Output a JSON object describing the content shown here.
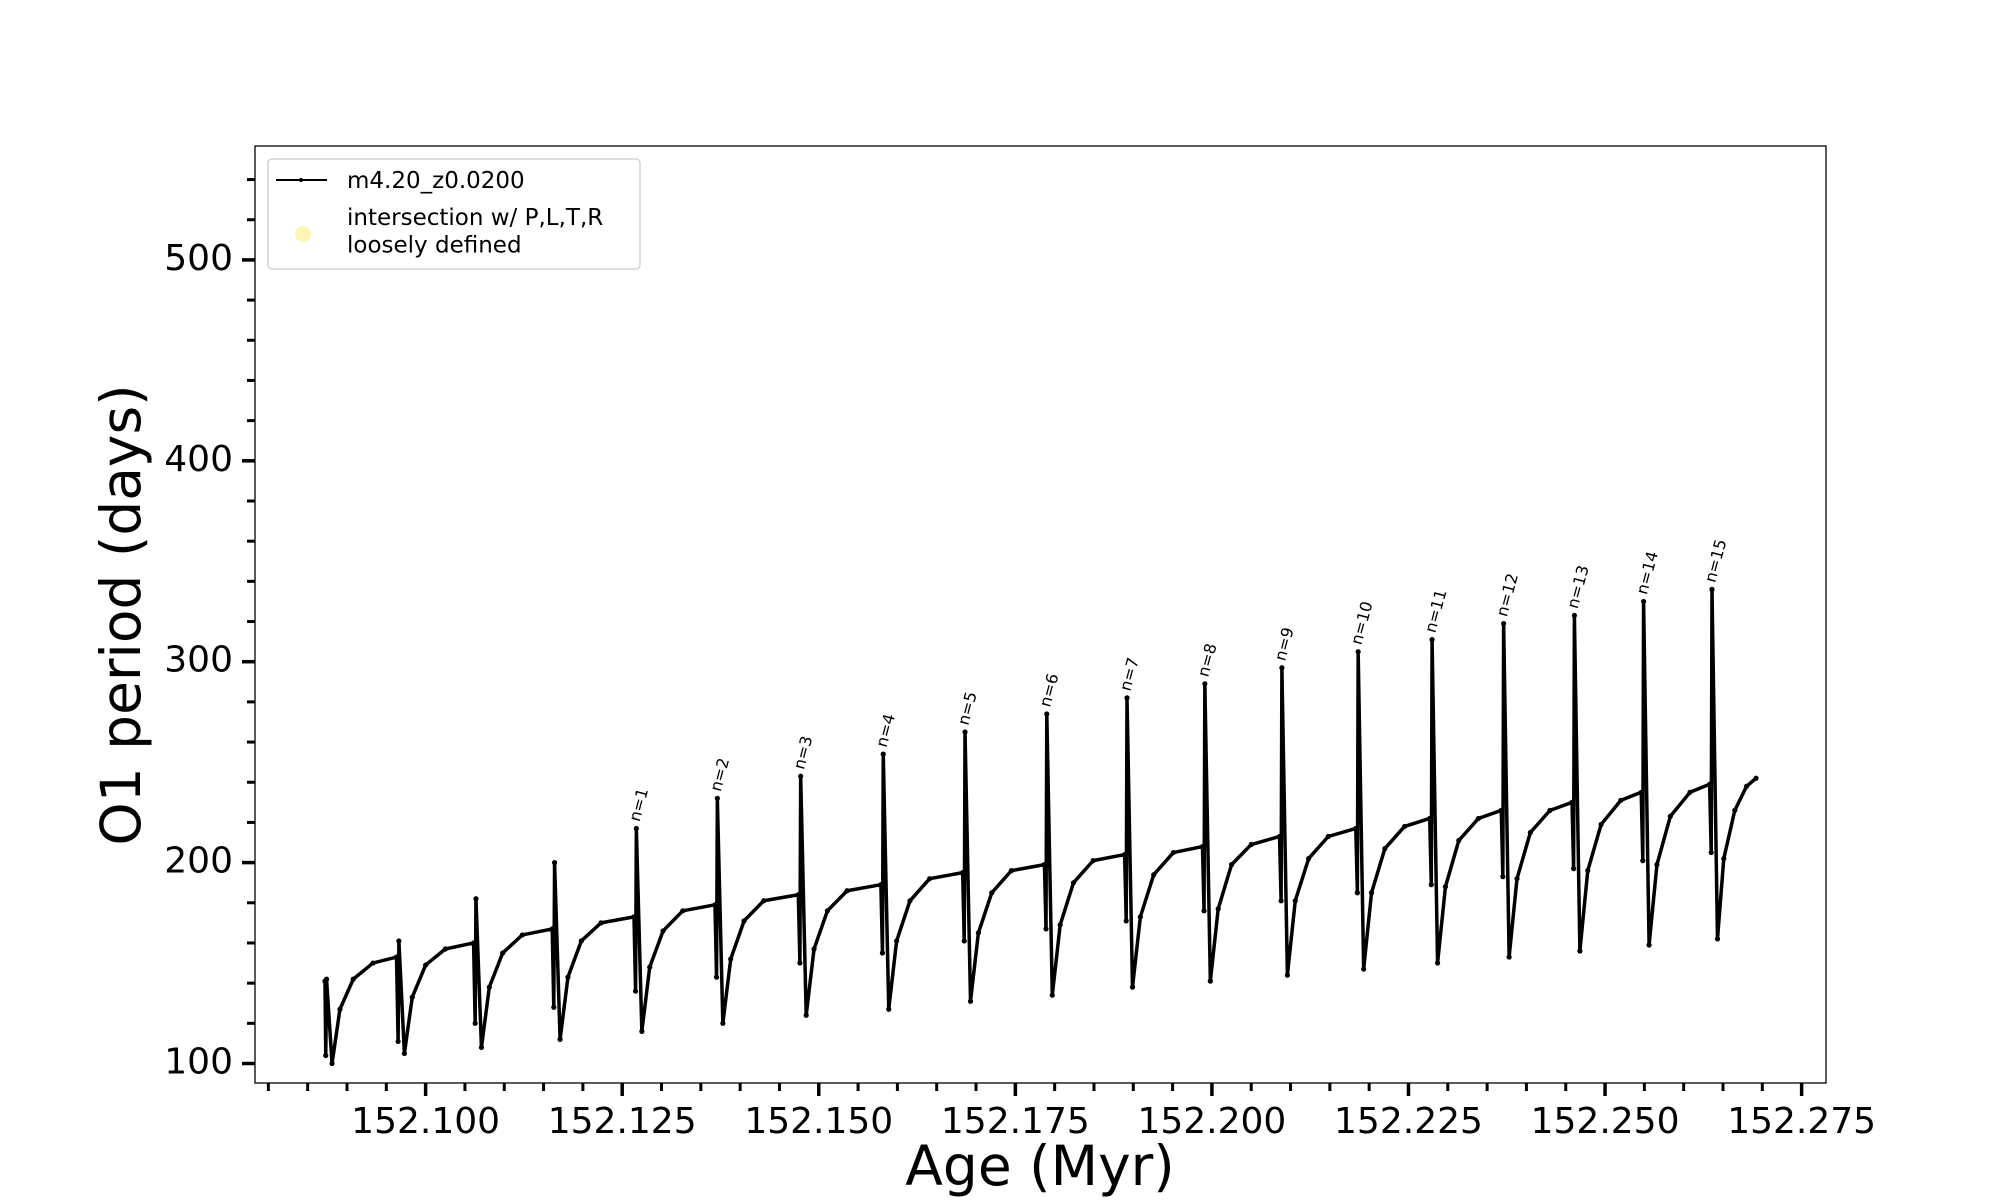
{
  "chart_data": {
    "type": "line",
    "xlabel": "Age (Myr)",
    "ylabel": "O1 period (days)",
    "xlim": [
      152.0783,
      152.2781
    ],
    "ylim": [
      90.3,
      556.7
    ],
    "xticks": [
      {
        "value": 152.1,
        "label": "152.100"
      },
      {
        "value": 152.125,
        "label": "152.125"
      },
      {
        "value": 152.15,
        "label": "152.150"
      },
      {
        "value": 152.175,
        "label": "152.175"
      },
      {
        "value": 152.2,
        "label": "152.200"
      },
      {
        "value": 152.225,
        "label": "152.225"
      },
      {
        "value": 152.25,
        "label": "152.250"
      },
      {
        "value": 152.275,
        "label": "152.275"
      }
    ],
    "xminorticks": [
      152.08,
      152.085,
      152.09,
      152.095,
      152.105,
      152.11,
      152.115,
      152.12,
      152.13,
      152.135,
      152.14,
      152.145,
      152.155,
      152.16,
      152.165,
      152.17,
      152.18,
      152.185,
      152.19,
      152.195,
      152.205,
      152.21,
      152.215,
      152.22,
      152.23,
      152.235,
      152.24,
      152.245,
      152.255,
      152.26,
      152.265,
      152.27
    ],
    "yticks": [
      100,
      200,
      300,
      400,
      500
    ],
    "yminorticks": [
      120,
      140,
      160,
      180,
      220,
      240,
      260,
      280,
      320,
      340,
      360,
      380,
      420,
      440,
      460,
      480,
      520,
      540
    ],
    "grid": false,
    "legend": "upper left",
    "series": [
      {
        "name": "m4.20_z0.0200",
        "color": "#000000",
        "x": [
          152.0872,
          152.0873,
          152.0874,
          152.0881,
          152.0891,
          152.0908,
          152.0933,
          152.0963,
          152.0965,
          152.0966,
          152.0973,
          152.0983,
          152.1,
          152.1025,
          152.1061,
          152.1063,
          152.1064,
          152.1071,
          152.1081,
          152.1098,
          152.1123,
          152.1161,
          152.1163,
          152.1164,
          152.1171,
          152.1181,
          152.1198,
          152.1223,
          152.1265,
          152.1267,
          152.1268,
          152.1275,
          152.1285,
          152.1302,
          152.1327,
          152.1368,
          152.137,
          152.1371,
          152.1378,
          152.1388,
          152.1405,
          152.143,
          152.1474,
          152.1476,
          152.1477,
          152.1484,
          152.1494,
          152.1511,
          152.1536,
          152.1579,
          152.1581,
          152.1582,
          152.1589,
          152.1599,
          152.1616,
          152.1641,
          152.1683,
          152.1685,
          152.1686,
          152.1693,
          152.1703,
          152.172,
          152.1745,
          152.1787,
          152.1789,
          152.179,
          152.1797,
          152.1807,
          152.1824,
          152.1849,
          152.1889,
          152.1891,
          152.1892,
          152.1899,
          152.1909,
          152.1926,
          152.1951,
          152.1988,
          152.199,
          152.1991,
          152.1998,
          152.2008,
          152.2025,
          152.205,
          152.2086,
          152.2088,
          152.2089,
          152.2096,
          152.2106,
          152.2123,
          152.2148,
          152.2183,
          152.2185,
          152.2186,
          152.2193,
          152.2203,
          152.222,
          152.2245,
          152.2277,
          152.2279,
          152.228,
          152.2287,
          152.2297,
          152.2314,
          152.2339,
          152.2368,
          152.237,
          152.2371,
          152.2378,
          152.2388,
          152.2405,
          152.243,
          152.2458,
          152.246,
          152.2461,
          152.2468,
          152.2478,
          152.2495,
          152.252,
          152.2546,
          152.2548,
          152.2549,
          152.2556,
          152.2566,
          152.2583,
          152.2608,
          152.2633,
          152.2635,
          152.2636,
          152.2643,
          152.2651,
          152.2665,
          152.268,
          152.2692
        ],
        "values": [
          141,
          104,
          142,
          100,
          127,
          142,
          150,
          153,
          111,
          161,
          105,
          133,
          149,
          157,
          160,
          120,
          182,
          108,
          138,
          155,
          164,
          167,
          128,
          200,
          112,
          143,
          161,
          170,
          173,
          136,
          217,
          116,
          148,
          166,
          176,
          179,
          143,
          232,
          120,
          152,
          171,
          181,
          184,
          150,
          243,
          124,
          157,
          176,
          186,
          189,
          155,
          254,
          127,
          161,
          181,
          192,
          195,
          161,
          265,
          131,
          165,
          185,
          196,
          199,
          167,
          274,
          134,
          169,
          190,
          201,
          204,
          171,
          282,
          138,
          173,
          194,
          205,
          208,
          176,
          289,
          141,
          177,
          199,
          209,
          213,
          181,
          297,
          144,
          181,
          202,
          213,
          217,
          185,
          305,
          147,
          185,
          207,
          218,
          222,
          189,
          311,
          150,
          188,
          211,
          222,
          226,
          193,
          319,
          153,
          192,
          215,
          226,
          230,
          197,
          323,
          156,
          196,
          219,
          231,
          235,
          201,
          330,
          159,
          199,
          223,
          235,
          239,
          205,
          336,
          162,
          202,
          226,
          238,
          242
        ]
      },
      {
        "name": "intersection w/ P,L,T,R\nloosely defined",
        "color": "#fbf6b4",
        "x": [],
        "values": []
      }
    ],
    "annotations": [
      {
        "text": "n=1",
        "x": 152.1272,
        "y": 220
      },
      {
        "text": "n=2",
        "x": 152.1375,
        "y": 235
      },
      {
        "text": "n=3",
        "x": 152.1481,
        "y": 246
      },
      {
        "text": "n=4",
        "x": 152.1586,
        "y": 257
      },
      {
        "text": "n=5",
        "x": 152.169,
        "y": 268
      },
      {
        "text": "n=6",
        "x": 152.1794,
        "y": 277
      },
      {
        "text": "n=7",
        "x": 152.1896,
        "y": 285
      },
      {
        "text": "n=8",
        "x": 152.1995,
        "y": 292
      },
      {
        "text": "n=9",
        "x": 152.2093,
        "y": 300
      },
      {
        "text": "n=10",
        "x": 152.219,
        "y": 308
      },
      {
        "text": "n=11",
        "x": 152.2284,
        "y": 314
      },
      {
        "text": "n=12",
        "x": 152.2375,
        "y": 322
      },
      {
        "text": "n=13",
        "x": 152.2465,
        "y": 326
      },
      {
        "text": "n=14",
        "x": 152.2553,
        "y": 333
      },
      {
        "text": "n=15",
        "x": 152.264,
        "y": 339
      }
    ]
  }
}
